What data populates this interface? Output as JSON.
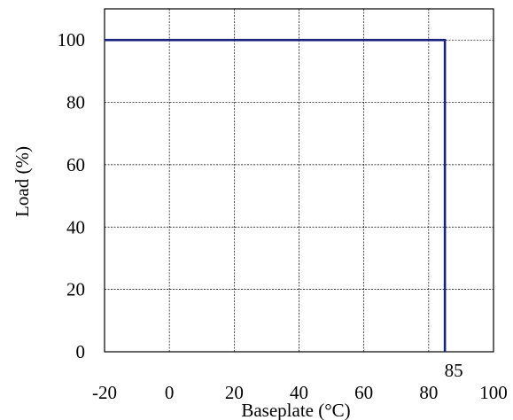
{
  "chart_data": {
    "type": "line",
    "title": "",
    "xlabel": "Baseplate (°C)",
    "ylabel": "Load (%)",
    "xlim": [
      -20,
      100
    ],
    "ylim": [
      0,
      110
    ],
    "x_ticks": [
      "-20",
      "0",
      "20",
      "40",
      "60",
      "80",
      "100"
    ],
    "y_ticks": [
      "0",
      "20",
      "40",
      "60",
      "80",
      "100"
    ],
    "annotations": [
      {
        "text": "85",
        "x": 85
      }
    ],
    "grid": true,
    "series": [
      {
        "color": "#1a237e",
        "points": [
          [
            -20,
            100
          ],
          [
            85,
            100
          ],
          [
            85,
            0
          ]
        ]
      }
    ]
  }
}
